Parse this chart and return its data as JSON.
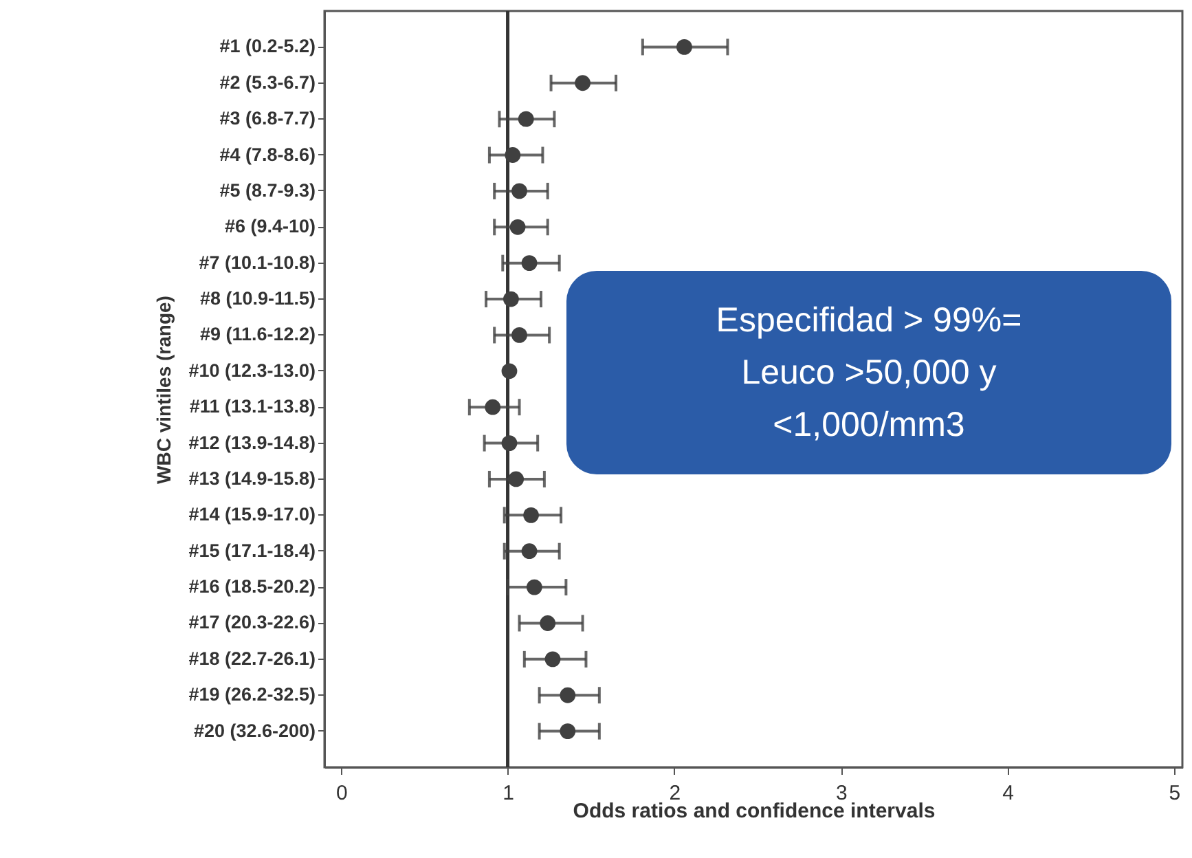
{
  "chart_data": {
    "type": "scatter",
    "orientation": "horizontal",
    "xlabel": "Odds ratios and confidence intervals",
    "ylabel": "WBC vintiles (range)",
    "categories": [
      "#1 (0.2-5.2)",
      "#2 (5.3-6.7)",
      "#3 (6.8-7.7)",
      "#4 (7.8-8.6)",
      "#5 (8.7-9.3)",
      "#6 (9.4-10)",
      "#7 (10.1-10.8)",
      "#8 (10.9-11.5)",
      "#9 (11.6-12.2)",
      "#10 (12.3-13.0)",
      "#11 (13.1-13.8)",
      "#12 (13.9-14.8)",
      "#13 (14.9-15.8)",
      "#14 (15.9-17.0)",
      "#15 (17.1-18.4)",
      "#16 (18.5-20.2)",
      "#17 (20.3-22.6)",
      "#18 (22.7-26.1)",
      "#19 (26.2-32.5)",
      "#20 (32.6-200)"
    ],
    "series": [
      {
        "color": "#404040",
        "values": [
          2.06,
          1.45,
          1.11,
          1.03,
          1.07,
          1.06,
          1.13,
          1.02,
          1.07,
          1.01,
          0.91,
          1.01,
          1.05,
          1.14,
          1.13,
          1.16,
          1.24,
          1.27,
          1.36,
          1.36
        ],
        "errors": [
          [
            1.81,
            2.32
          ],
          [
            1.26,
            1.65
          ],
          [
            0.95,
            1.28
          ],
          [
            0.89,
            1.21
          ],
          [
            0.92,
            1.24
          ],
          [
            0.92,
            1.24
          ],
          [
            0.97,
            1.31
          ],
          [
            0.87,
            1.2
          ],
          [
            0.92,
            1.25
          ],
          null,
          [
            0.77,
            1.07
          ],
          [
            0.86,
            1.18
          ],
          [
            0.89,
            1.22
          ],
          [
            0.98,
            1.32
          ],
          [
            0.98,
            1.31
          ],
          [
            1.0,
            1.35
          ],
          [
            1.07,
            1.45
          ],
          [
            1.1,
            1.47
          ],
          [
            1.19,
            1.55
          ],
          [
            1.19,
            1.55
          ]
        ]
      }
    ],
    "xlim": [
      -0.1,
      5.05
    ],
    "xticks": [
      0,
      1,
      2,
      3,
      4,
      5
    ],
    "grid": false,
    "marker": "circle",
    "ref_lines": [
      {
        "axis": "x",
        "value": 1,
        "color": "#333333"
      }
    ],
    "annotations": [
      "Especifidad > 99%= Leuco >50,000  y <1,000/mm3"
    ]
  }
}
